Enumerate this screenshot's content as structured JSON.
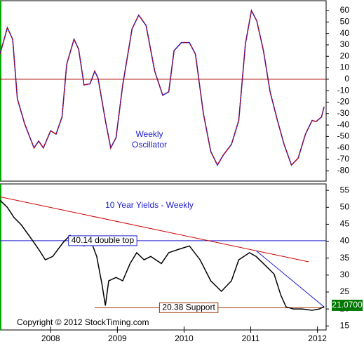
{
  "chart_data": [
    {
      "type": "line",
      "annotations": [
        "Weekly",
        "Oscillator"
      ],
      "xlim": [
        2007.24,
        2012.13
      ],
      "ylim": [
        -89,
        68.6
      ],
      "yticks": [
        60,
        50,
        40,
        30,
        20,
        10,
        0,
        -10,
        -20,
        -30,
        -40,
        -50,
        -60,
        -70,
        -80
      ],
      "reference_line": {
        "value": 0,
        "color": "#aa0000"
      },
      "x": [
        2007.24,
        2007.35,
        2007.43,
        2007.5,
        2007.61,
        2007.75,
        2007.82,
        2007.89,
        2008.0,
        2008.08,
        2008.17,
        2008.24,
        2008.35,
        2008.42,
        2008.5,
        2008.59,
        2008.66,
        2008.71,
        2008.82,
        2008.9,
        2008.98,
        2009.08,
        2009.22,
        2009.32,
        2009.43,
        2009.56,
        2009.68,
        2009.77,
        2009.85,
        2009.96,
        2010.08,
        2010.17,
        2010.29,
        2010.4,
        2010.5,
        2010.59,
        2010.71,
        2010.82,
        2010.92,
        2011.01,
        2011.09,
        2011.19,
        2011.29,
        2011.4,
        2011.5,
        2011.61,
        2011.71,
        2011.82,
        2011.92,
        2011.98,
        2012.06,
        2012.1
      ],
      "series": [
        {
          "color": "#cc0000",
          "under_color": "#2222cc",
          "values": [
            22,
            45,
            35,
            -17,
            -39,
            -60,
            -54,
            -60,
            -45,
            -48,
            -33,
            13,
            35,
            26,
            -5,
            -4,
            7,
            1,
            -36,
            -60,
            -51,
            -5,
            44,
            56,
            47,
            7,
            -14,
            -11,
            25,
            32,
            32,
            22,
            -30,
            -63,
            -75,
            -66,
            -57,
            -36,
            31,
            60,
            51,
            25,
            -11,
            -36,
            -57,
            -75,
            -69,
            -48,
            -36,
            -37,
            -33,
            -24
          ]
        }
      ]
    },
    {
      "type": "line",
      "title": "10 Year Yields - Weekly",
      "copyright": "Copyright © 2012 StockTiming.com",
      "xlim": [
        2007.24,
        2012.13
      ],
      "xticks": [
        2008,
        2009,
        2010,
        2011,
        2012
      ],
      "ylim": [
        13.8,
        56.9
      ],
      "yticks": [
        55,
        50,
        45,
        40,
        35,
        30,
        25,
        20,
        15
      ],
      "x": [
        2007.24,
        2007.35,
        2007.45,
        2007.56,
        2007.71,
        2007.82,
        2007.92,
        2008.03,
        2008.19,
        2008.29,
        2008.4,
        2008.5,
        2008.61,
        2008.69,
        2008.77,
        2008.82,
        2008.87,
        2008.98,
        2009.08,
        2009.19,
        2009.29,
        2009.4,
        2009.5,
        2009.66,
        2009.77,
        2009.92,
        2010.08,
        2010.24,
        2010.4,
        2010.56,
        2010.71,
        2010.82,
        2010.98,
        2011.08,
        2011.19,
        2011.35,
        2011.45,
        2011.53,
        2011.64,
        2011.77,
        2011.92,
        2012.03,
        2012.1
      ],
      "series": [
        {
          "color": "#000000",
          "values": [
            52.1,
            50,
            47,
            44.8,
            40.7,
            37.6,
            34.5,
            35.5,
            39.7,
            41.7,
            39.7,
            38.6,
            39.7,
            35.5,
            27.2,
            21,
            28.3,
            29.3,
            28.3,
            33.4,
            36.6,
            34.5,
            35.5,
            33.4,
            36.6,
            37.6,
            38.6,
            34.5,
            28.3,
            25.2,
            28.3,
            34.5,
            36.6,
            35.5,
            33.4,
            30.3,
            24.1,
            20.6,
            20,
            20,
            19.6,
            20,
            20.7
          ]
        }
      ],
      "trendlines": [
        {
          "color": "#cc0000",
          "x": [
            2007.24,
            2011.87
          ],
          "values": [
            53.1,
            33.9
          ]
        },
        {
          "color": "#2222cc",
          "x": [
            2011.08,
            2012.1
          ],
          "values": [
            37.2,
            20.6
          ]
        }
      ],
      "hlines": [
        {
          "value": 40.14,
          "label": "40.14 double top",
          "color": "#2222cc",
          "x": [
            2007.24,
            2012.13
          ],
          "label_x": 2008.78
        },
        {
          "value": 20.38,
          "label": "20.38 Support",
          "color": "#993300",
          "x": [
            2008.66,
            2012.1
          ],
          "label_x": 2010.07
        }
      ],
      "last_value": {
        "value": 21.07,
        "label": "21.0700",
        "color": "#007700"
      }
    }
  ]
}
